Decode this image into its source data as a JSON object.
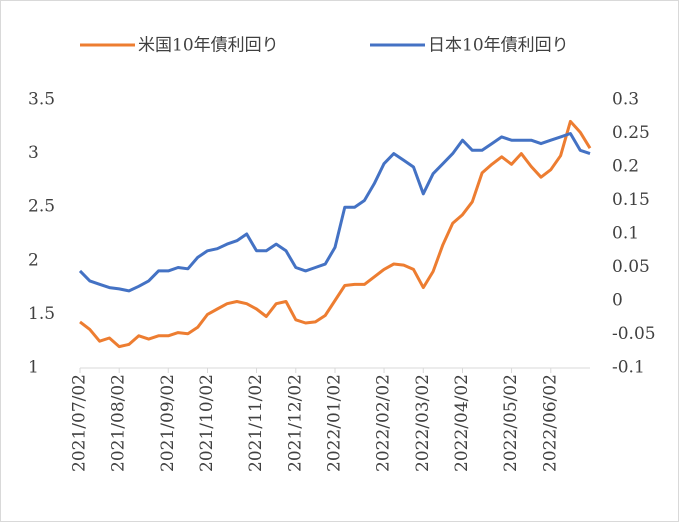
{
  "chart_data": {
    "type": "line",
    "categories": [
      "2021/07/02",
      null,
      null,
      null,
      "2021/08/02",
      null,
      null,
      null,
      null,
      "2021/09/02",
      null,
      null,
      null,
      "2021/10/02",
      null,
      null,
      null,
      null,
      "2021/11/02",
      null,
      null,
      null,
      "2021/12/02",
      null,
      null,
      null,
      "2022/01/02",
      null,
      null,
      null,
      null,
      "2022/02/02",
      null,
      null,
      null,
      "2022/03/02",
      null,
      null,
      null,
      "2022/04/02",
      null,
      null,
      null,
      null,
      "2022/05/02",
      null,
      null,
      null,
      "2022/06/02",
      null,
      null,
      null,
      null
    ],
    "series": [
      {
        "name": "米国10年債利回り",
        "color": "#ed7d31",
        "axis": "y",
        "values": [
          1.43,
          1.36,
          1.25,
          1.28,
          1.2,
          1.22,
          1.3,
          1.27,
          1.3,
          1.3,
          1.33,
          1.32,
          1.38,
          1.5,
          1.55,
          1.6,
          1.62,
          1.6,
          1.55,
          1.48,
          1.6,
          1.62,
          1.45,
          1.42,
          1.43,
          1.49,
          1.63,
          1.77,
          1.78,
          1.78,
          1.85,
          1.92,
          1.97,
          1.96,
          1.92,
          1.75,
          1.9,
          2.15,
          2.35,
          2.43,
          2.55,
          2.82,
          2.9,
          2.97,
          2.9,
          3.0,
          2.88,
          2.78,
          2.85,
          2.98,
          3.3,
          3.2,
          3.05
        ]
      },
      {
        "name": "日本10年債利回り",
        "color": "#4472c4",
        "axis": "y2",
        "values": [
          0.045,
          0.03,
          0.025,
          0.02,
          0.018,
          0.015,
          0.022,
          0.03,
          0.045,
          0.045,
          0.05,
          0.048,
          0.065,
          0.075,
          0.078,
          0.085,
          0.09,
          0.1,
          0.075,
          0.075,
          0.085,
          0.075,
          0.05,
          0.045,
          0.05,
          0.055,
          0.08,
          0.14,
          0.14,
          0.15,
          0.175,
          0.205,
          0.22,
          0.21,
          0.2,
          0.16,
          0.19,
          0.205,
          0.22,
          0.24,
          0.225,
          0.225,
          0.235,
          0.245,
          0.24,
          0.24,
          0.24,
          0.235,
          0.24,
          0.245,
          0.25,
          0.225,
          0.22
        ]
      }
    ],
    "ylim": [
      1,
      3.5
    ],
    "yticks": [
      1,
      1.5,
      2,
      2.5,
      3,
      3.5
    ],
    "y2lim": [
      -0.1,
      0.3
    ],
    "y2ticks": [
      -0.1,
      -0.05,
      0,
      0.05,
      0.1,
      0.15,
      0.2,
      0.25,
      0.3
    ],
    "grid": false,
    "legend": "top"
  }
}
